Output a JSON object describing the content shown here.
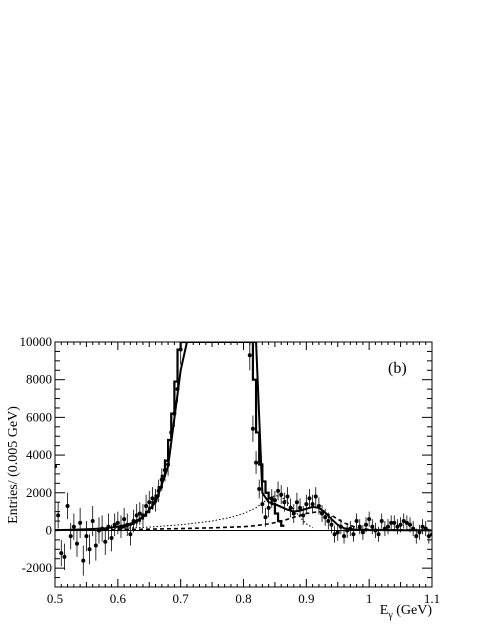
{
  "chart_data": {
    "type": "line",
    "panel_label": "(b)",
    "xlabel_main": "E",
    "xlabel_sub": "γ",
    "xlabel_unit": " (GeV)",
    "ylabel": "Entries/ (0.005 GeV)",
    "xlim": [
      0.5,
      1.1
    ],
    "ylim": [
      -3000,
      10000
    ],
    "x_ticks": [
      0.5,
      0.6,
      0.7,
      0.8,
      0.9,
      1.0,
      1.1
    ],
    "x_tick_labels": [
      "0.5",
      "0.6",
      "0.7",
      "0.8",
      "0.9",
      "1",
      "1.1"
    ],
    "y_ticks": [
      -2000,
      0,
      2000,
      4000,
      6000,
      8000,
      10000
    ],
    "y_tick_labels": [
      "-2000",
      "0",
      "2000",
      "4000",
      "6000",
      "8000",
      "10000"
    ],
    "series": [
      {
        "style": "histogram-thick",
        "x": [
          0.6,
          0.605,
          0.61,
          0.615,
          0.62,
          0.625,
          0.63,
          0.635,
          0.64,
          0.645,
          0.65,
          0.655,
          0.66,
          0.665,
          0.67,
          0.675,
          0.68,
          0.685,
          0.69,
          0.695,
          0.7,
          0.705,
          0.81,
          0.815,
          0.82,
          0.825,
          0.83,
          0.835,
          0.84,
          0.845,
          0.85,
          0.855,
          0.86
        ],
        "y": [
          150,
          180,
          220,
          280,
          350,
          430,
          520,
          640,
          790,
          980,
          1200,
          1500,
          1850,
          2300,
          2900,
          3700,
          4800,
          6200,
          7900,
          9600,
          10000,
          10000,
          10000,
          8000,
          5200,
          3500,
          2600,
          2000,
          1700,
          1400,
          900,
          500,
          250
        ]
      },
      {
        "style": "smooth-solid",
        "x": [
          0.5,
          0.52,
          0.54,
          0.56,
          0.58,
          0.6,
          0.62,
          0.64,
          0.66,
          0.68,
          0.7,
          0.71,
          0.82,
          0.83,
          0.84,
          0.85,
          0.86,
          0.87,
          0.88,
          0.89,
          0.9,
          0.91,
          0.92,
          0.93,
          0.94,
          0.95,
          0.96,
          0.98,
          1.0,
          1.05,
          1.1
        ],
        "y": [
          20,
          30,
          50,
          80,
          120,
          200,
          350,
          700,
          1500,
          3400,
          8500,
          10000,
          10000,
          2000,
          1500,
          1400,
          1250,
          1100,
          1000,
          1050,
          1150,
          1250,
          1200,
          950,
          600,
          300,
          120,
          40,
          20,
          10,
          5
        ]
      },
      {
        "style": "dotted",
        "x": [
          0.5,
          0.55,
          0.6,
          0.65,
          0.7,
          0.75,
          0.78,
          0.8,
          0.82,
          0.83,
          0.84,
          0.85,
          0.86,
          0.87,
          0.88,
          0.89,
          0.9,
          0.91
        ],
        "y": [
          30,
          50,
          100,
          180,
          300,
          500,
          700,
          900,
          1200,
          1450,
          1700,
          1850,
          1800,
          1500,
          1100,
          700,
          350,
          150
        ]
      },
      {
        "style": "dashed",
        "x": [
          0.5,
          0.55,
          0.6,
          0.65,
          0.7,
          0.75,
          0.8,
          0.82,
          0.84,
          0.86,
          0.88,
          0.9,
          0.92,
          0.94,
          0.96,
          0.98,
          1.0,
          1.1
        ],
        "y": [
          10,
          20,
          40,
          70,
          100,
          140,
          200,
          260,
          350,
          480,
          700,
          900,
          1000,
          800,
          400,
          150,
          50,
          10
        ]
      },
      {
        "style": "points",
        "x": [
          0.5,
          0.505,
          0.51,
          0.515,
          0.52,
          0.525,
          0.53,
          0.535,
          0.54,
          0.545,
          0.55,
          0.555,
          0.56,
          0.565,
          0.57,
          0.575,
          0.58,
          0.585,
          0.59,
          0.595,
          0.6,
          0.605,
          0.61,
          0.615,
          0.62,
          0.625,
          0.63,
          0.635,
          0.64,
          0.645,
          0.65,
          0.655,
          0.66,
          0.665,
          0.67,
          0.675,
          0.68,
          0.685,
          0.69,
          0.695,
          0.7,
          0.81,
          0.815,
          0.82,
          0.825,
          0.83,
          0.835,
          0.84,
          0.845,
          0.85,
          0.855,
          0.86,
          0.865,
          0.87,
          0.875,
          0.88,
          0.885,
          0.89,
          0.895,
          0.9,
          0.905,
          0.91,
          0.915,
          0.92,
          0.925,
          0.93,
          0.935,
          0.94,
          0.945,
          0.95,
          0.955,
          0.96,
          0.965,
          0.97,
          0.975,
          0.98,
          0.985,
          0.99,
          0.995,
          1.0,
          1.005,
          1.01,
          1.015,
          1.02,
          1.025,
          1.03,
          1.035,
          1.04,
          1.045,
          1.05,
          1.055,
          1.06,
          1.065,
          1.07,
          1.075,
          1.08,
          1.085,
          1.09,
          1.095,
          1.1
        ],
        "y": [
          3400,
          800,
          -1200,
          -1400,
          1300,
          -300,
          200,
          -700,
          400,
          -1600,
          -300,
          -1000,
          500,
          -800,
          0,
          100,
          -600,
          200,
          -400,
          300,
          400,
          200,
          600,
          300,
          -200,
          500,
          800,
          900,
          800,
          1300,
          1500,
          1700,
          1600,
          2100,
          2700,
          3200,
          3500,
          5200,
          6200,
          7500,
          9600,
          9300,
          5400,
          3600,
          2200,
          1400,
          700,
          1200,
          1700,
          1600,
          2100,
          1900,
          1500,
          1800,
          1200,
          900,
          1500,
          1200,
          800,
          1400,
          1700,
          1400,
          1800,
          1300,
          900,
          700,
          500,
          300,
          -200,
          -100,
          200,
          -300,
          0,
          100,
          -200,
          500,
          200,
          -100,
          300,
          600,
          200,
          0,
          -200,
          500,
          100,
          200,
          400,
          400,
          200,
          300,
          500,
          400,
          300,
          100,
          -300,
          -100,
          200,
          100,
          -300,
          -200
        ],
        "errors": [
          600,
          700,
          700,
          700,
          700,
          700,
          700,
          700,
          800,
          800,
          800,
          800,
          800,
          800,
          700,
          700,
          700,
          700,
          700,
          600,
          600,
          600,
          600,
          600,
          600,
          600,
          600,
          600,
          600,
          600,
          600,
          600,
          600,
          600,
          600,
          600,
          600,
          700,
          700,
          700,
          800,
          800,
          700,
          600,
          500,
          500,
          500,
          500,
          500,
          500,
          500,
          500,
          500,
          500,
          500,
          500,
          500,
          500,
          500,
          500,
          500,
          500,
          500,
          450,
          450,
          450,
          450,
          450,
          450,
          450,
          400,
          400,
          400,
          400,
          400,
          400,
          400,
          400,
          400,
          400,
          400,
          400,
          400,
          400,
          400,
          400,
          400,
          400,
          400,
          400,
          400,
          400,
          400,
          400,
          400,
          400,
          400,
          400,
          400,
          400
        ]
      }
    ]
  }
}
